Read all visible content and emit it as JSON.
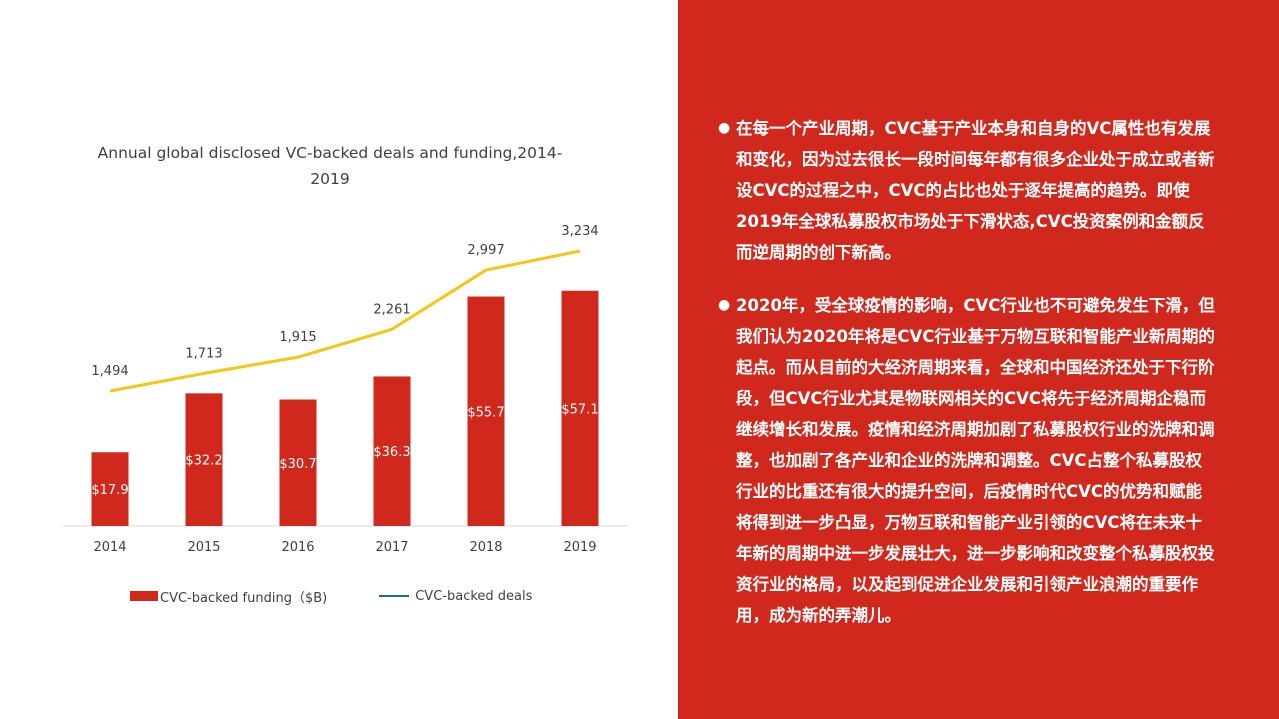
{
  "chart_data": {
    "type": "bar",
    "title": "Annual global disclosed VC-backed  deals and funding,2014-2019",
    "categories": [
      "2014",
      "2015",
      "2016",
      "2017",
      "2018",
      "2019"
    ],
    "series": [
      {
        "name": "CVC-backed funding（$B)",
        "type": "bar",
        "values": [
          17.9,
          32.2,
          30.7,
          36.3,
          55.7,
          57.1
        ],
        "labels": [
          "$17.9",
          "$32.2",
          "$30.7",
          "$36.3",
          "$55.7",
          "$57.1"
        ],
        "color": "#d0281c"
      },
      {
        "name": "CVC-backed deals",
        "type": "line",
        "values": [
          1494,
          1713,
          1915,
          2261,
          2997,
          3234
        ],
        "labels": [
          "1,494",
          "1,713",
          "1,915",
          "2,261",
          "2,997",
          "3,234"
        ],
        "color": "#f5c518"
      }
    ],
    "legend_line_color": "#1f6f6f",
    "grid": false,
    "legend": "bottom"
  },
  "colors": {
    "panel_background": "#d0281c",
    "text_on_panel": "#ffffff"
  },
  "panel": {
    "bullets": [
      "在每一个产业周期，CVC基于产业本身和自身的VC属性也有发展和变化，因为过去很长一段时间每年都有很多企业处于成立或者新设CVC的过程之中，CVC的占比也处于逐年提高的趋势。即使2019年全球私募股权市场处于下滑状态,CVC投资案例和金额反而逆周期的创下新高。",
      "2020年，受全球疫情的影响，CVC行业也不可避免发生下滑，但我们认为2020年将是CVC行业基于万物互联和智能产业新周期的起点。而从目前的大经济周期来看，全球和中国经济还处于下行阶段，但CVC行业尤其是物联网相关的CVC将先于经济周期企稳而继续增长和发展。疫情和经济周期加剧了私募股权行业的洗牌和调整，也加剧了各产业和企业的洗牌和调整。CVC占整个私募股权行业的比重还有很大的提升空间，后疫情时代CVC的优势和赋能将得到进一步凸显，万物互联和智能产业引领的CVC将在未来十年新的周期中进一步发展壮大，进一步影响和改变整个私募股权投资行业的格局，以及起到促进企业发展和引领产业浪潮的重要作用，成为新的弄潮儿。"
    ]
  }
}
